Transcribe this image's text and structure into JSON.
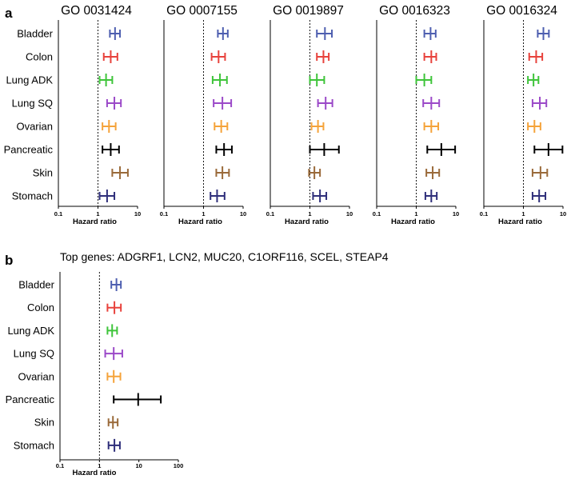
{
  "chart_data": [
    {
      "type": "forest",
      "panel": "a",
      "title": "GO 0031424",
      "categories": [
        "Bladder",
        "Colon",
        "Lung ADK",
        "Lung SQ",
        "Ovarian",
        "Pancreatic",
        "Skin",
        "Stomach"
      ],
      "colors": [
        "#4e5fb0",
        "#e8423c",
        "#3ec43a",
        "#9b49c8",
        "#f5a33a",
        "#000000",
        "#9a6a3a",
        "#2e2e7a"
      ],
      "hr": [
        2.7,
        2.1,
        1.6,
        2.6,
        1.9,
        2.1,
        3.6,
        1.7
      ],
      "ci_low": [
        2.0,
        1.4,
        1.1,
        1.7,
        1.3,
        1.3,
        2.3,
        1.1
      ],
      "ci_high": [
        3.6,
        3.1,
        2.3,
        3.8,
        2.8,
        3.4,
        5.7,
        2.6
      ],
      "reference": 1,
      "xscale": "log",
      "xlim": [
        0.1,
        10
      ],
      "xticks": [
        "0.1",
        "1",
        "10"
      ],
      "xlabel": "Hazard ratio"
    },
    {
      "type": "forest",
      "panel": "a",
      "title": "GO 0007155",
      "categories": [
        "Bladder",
        "Colon",
        "Lung ADK",
        "Lung SQ",
        "Ovarian",
        "Pancreatic",
        "Skin",
        "Stomach"
      ],
      "colors": [
        "#4e5fb0",
        "#e8423c",
        "#3ec43a",
        "#9b49c8",
        "#f5a33a",
        "#000000",
        "#9a6a3a",
        "#2e2e7a"
      ],
      "hr": [
        3.1,
        2.4,
        2.6,
        3.0,
        2.8,
        3.3,
        3.0,
        2.2
      ],
      "ci_low": [
        2.3,
        1.6,
        1.7,
        1.8,
        1.9,
        2.1,
        2.1,
        1.5
      ],
      "ci_high": [
        4.1,
        3.5,
        3.9,
        5.0,
        4.0,
        5.2,
        4.4,
        3.4
      ],
      "reference": 1,
      "xscale": "log",
      "xlim": [
        0.1,
        10
      ],
      "xticks": [
        "0.1",
        "1",
        "10"
      ],
      "xlabel": "Hazard ratio"
    },
    {
      "type": "forest",
      "panel": "a",
      "title": "GO 0019897",
      "categories": [
        "Bladder",
        "Colon",
        "Lung ADK",
        "Lung SQ",
        "Ovarian",
        "Pancreatic",
        "Skin",
        "Stomach"
      ],
      "colors": [
        "#4e5fb0",
        "#e8423c",
        "#3ec43a",
        "#9b49c8",
        "#f5a33a",
        "#000000",
        "#9a6a3a",
        "#2e2e7a"
      ],
      "hr": [
        2.4,
        2.2,
        1.5,
        2.5,
        1.6,
        2.3,
        1.3,
        1.8
      ],
      "ci_low": [
        1.5,
        1.5,
        1.0,
        1.6,
        1.1,
        1.0,
        0.95,
        1.2
      ],
      "ci_high": [
        3.6,
        3.0,
        2.3,
        3.7,
        2.2,
        5.4,
        1.8,
        2.6
      ],
      "reference": 1,
      "xscale": "log",
      "xlim": [
        0.1,
        10
      ],
      "xticks": [
        "0.1",
        "1",
        "10"
      ],
      "xlabel": "Hazard ratio"
    },
    {
      "type": "forest",
      "panel": "a",
      "title": "GO 0016323",
      "categories": [
        "Bladder",
        "Colon",
        "Lung ADK",
        "Lung SQ",
        "Ovarian",
        "Pancreatic",
        "Skin",
        "Stomach"
      ],
      "colors": [
        "#4e5fb0",
        "#e8423c",
        "#3ec43a",
        "#9b49c8",
        "#f5a33a",
        "#000000",
        "#9a6a3a",
        "#2e2e7a"
      ],
      "hr": [
        2.3,
        2.4,
        1.6,
        2.4,
        2.4,
        4.3,
        2.6,
        2.4
      ],
      "ci_low": [
        1.6,
        1.6,
        1.0,
        1.5,
        1.6,
        1.9,
        1.8,
        1.7
      ],
      "ci_high": [
        3.1,
        3.2,
        2.4,
        3.8,
        3.6,
        9.6,
        3.8,
        3.3
      ],
      "reference": 1,
      "xscale": "log",
      "xlim": [
        0.1,
        10
      ],
      "xticks": [
        "0.1",
        "1",
        "10"
      ],
      "xlabel": "Hazard ratio"
    },
    {
      "type": "forest",
      "panel": "a",
      "title": "GO 0016324",
      "categories": [
        "Bladder",
        "Colon",
        "Lung ADK",
        "Lung SQ",
        "Ovarian",
        "Pancreatic",
        "Skin",
        "Stomach"
      ],
      "colors": [
        "#4e5fb0",
        "#e8423c",
        "#3ec43a",
        "#9b49c8",
        "#f5a33a",
        "#000000",
        "#9a6a3a",
        "#2e2e7a"
      ],
      "hr": [
        3.2,
        2.1,
        1.8,
        2.6,
        1.9,
        4.3,
        2.7,
        2.5
      ],
      "ci_low": [
        2.3,
        1.4,
        1.3,
        1.7,
        1.3,
        1.9,
        1.7,
        1.7
      ],
      "ci_high": [
        4.4,
        3.0,
        2.4,
        3.8,
        2.7,
        9.7,
        4.0,
        3.6
      ],
      "reference": 1,
      "xscale": "log",
      "xlim": [
        0.1,
        10
      ],
      "xticks": [
        "0.1",
        "1",
        "10"
      ],
      "xlabel": "Hazard ratio"
    },
    {
      "type": "forest",
      "panel": "b",
      "title": "Top genes: ADGRF1, LCN2, MUC20, C1ORF116, SCEL, STEAP4",
      "categories": [
        "Bladder",
        "Colon",
        "Lung ADK",
        "Lung SQ",
        "Ovarian",
        "Pancreatic",
        "Skin",
        "Stomach"
      ],
      "colors": [
        "#4e5fb0",
        "#e8423c",
        "#3ec43a",
        "#9b49c8",
        "#f5a33a",
        "#000000",
        "#9a6a3a",
        "#2e2e7a"
      ],
      "hr": [
        2.7,
        2.4,
        2.1,
        2.3,
        2.3,
        9.6,
        2.2,
        2.4
      ],
      "ci_low": [
        2.0,
        1.6,
        1.6,
        1.4,
        1.6,
        2.3,
        1.7,
        1.7
      ],
      "ci_high": [
        3.5,
        3.5,
        2.8,
        3.8,
        3.4,
        36,
        2.9,
        3.3
      ],
      "reference": 1,
      "xscale": "log",
      "xlim": [
        0.1,
        100
      ],
      "xticks": [
        "0.1",
        "1",
        "10",
        "100"
      ],
      "xlabel": "Hazard ratio"
    }
  ],
  "figure": {
    "panel_a_letter": "a",
    "panel_b_letter": "b"
  }
}
